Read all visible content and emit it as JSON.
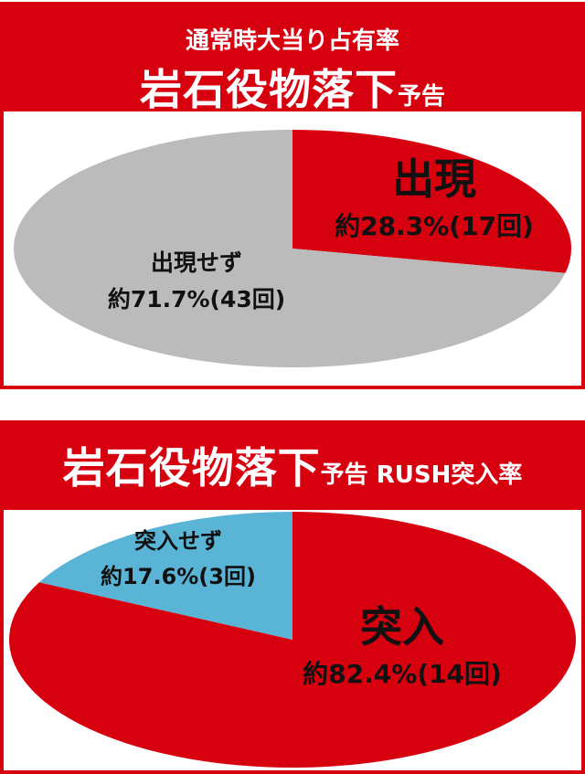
{
  "chart_data": [
    {
      "type": "pie",
      "title": "通常時大当り占有率",
      "title_main": "岩石役物落下",
      "title_suffix": "予告",
      "slices": [
        {
          "label": "出現",
          "value": 28.3,
          "value_text": "約28.3%(17回)",
          "count": 17,
          "color": "#d7000f"
        },
        {
          "label": "出現せず",
          "value": 71.7,
          "value_text": "約71.7%(43回)",
          "count": 43,
          "color": "#bbbbbb"
        }
      ]
    },
    {
      "type": "pie",
      "title_main": "岩石役物落下",
      "title_suffix": "予告 RUSH突入率",
      "slices": [
        {
          "label": "突入",
          "value": 82.4,
          "value_text": "約82.4%(14回)",
          "count": 14,
          "color": "#d7000f"
        },
        {
          "label": "突入せず",
          "value": 17.6,
          "value_text": "約17.6%(3回)",
          "count": 3,
          "color": "#5ab4d6"
        }
      ]
    }
  ]
}
